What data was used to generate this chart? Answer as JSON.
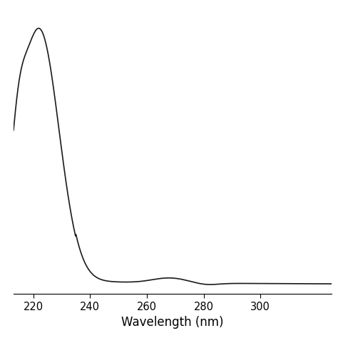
{
  "xlabel": "Wavelength (nm)",
  "xlim": [
    213,
    325
  ],
  "ylim": [
    -0.04,
    1.0
  ],
  "xticks": [
    220,
    240,
    260,
    280,
    300
  ],
  "line_color": "#1a1a1a",
  "line_width": 1.2,
  "background_color": "#ffffff",
  "xlabel_fontsize": 12,
  "tick_fontsize": 10.5
}
